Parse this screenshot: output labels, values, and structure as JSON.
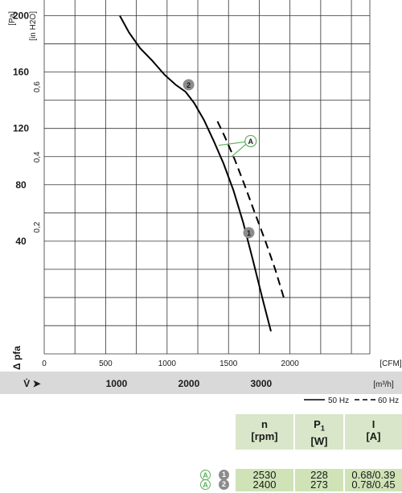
{
  "chart_data": {
    "type": "line",
    "y_left_unit": "[Pa]",
    "y_right_unit": "[in H2O]",
    "y_left_ticks": [
      "200",
      "160",
      "120",
      "80",
      "40"
    ],
    "y_right_ticks": [
      "0,6",
      "0,4",
      "0,2"
    ],
    "ylabel": "Δ pfa",
    "x_cfm_ticks": [
      "0",
      "500",
      "1000",
      "1500",
      "2000"
    ],
    "x_cfm_unit": "[CFM]",
    "x_m3h_ticks": [
      "1000",
      "2000",
      "3000"
    ],
    "x_m3h_unit": "[m³/h]",
    "xlabel": "V̇",
    "xlim_cfm": [
      0,
      2650
    ],
    "ylim_pa": [
      -40,
      210
    ],
    "series": [
      {
        "name": "50 Hz",
        "dash": false,
        "x": [
          615,
          690,
          780,
          880,
          980,
          1070,
          1150,
          1220,
          1300,
          1380,
          1460,
          1540,
          1620,
          1700,
          1780,
          1845
        ],
        "y": [
          200,
          188,
          177,
          168,
          158,
          151,
          146,
          138,
          126,
          111,
          95,
          76,
          53,
          26,
          -2,
          -24
        ]
      },
      {
        "name": "60 Hz",
        "dash": true,
        "x": [
          1410,
          1470,
          1550,
          1630,
          1710,
          1800,
          1880,
          1960
        ],
        "y": [
          125,
          114,
          98,
          80,
          61,
          40,
          20,
          -3
        ]
      }
    ],
    "markers": [
      {
        "label": "2",
        "x": 1175,
        "y": 151
      },
      {
        "label": "1",
        "x": 1665,
        "y": 46
      },
      {
        "label": "A",
        "x": 1680,
        "y": 111
      }
    ],
    "grid": true,
    "legend": "bottom-right"
  },
  "table": {
    "headers": [
      {
        "top": "n",
        "bottom": "[rpm]"
      },
      {
        "top": "P",
        "sub": "1",
        "bottom": "[W]"
      },
      {
        "top": "I",
        "bottom": "[A]"
      }
    ],
    "rows": [
      {
        "badge_a": "A",
        "badge_n": "1",
        "n": "2530",
        "p1": "228",
        "i": "0.68/0.39"
      },
      {
        "badge_a": "A",
        "badge_n": "2",
        "n": "2400",
        "p1": "273",
        "i": "0.78/0.45"
      }
    ]
  },
  "colors": {
    "grid": "#333333",
    "band": "#d9d9d9",
    "header_fill": "#d9e6c9",
    "cell_fill": "#cfe3b7",
    "marker_grey": "#8c8c8c",
    "marker_green": "#5bb05b"
  }
}
